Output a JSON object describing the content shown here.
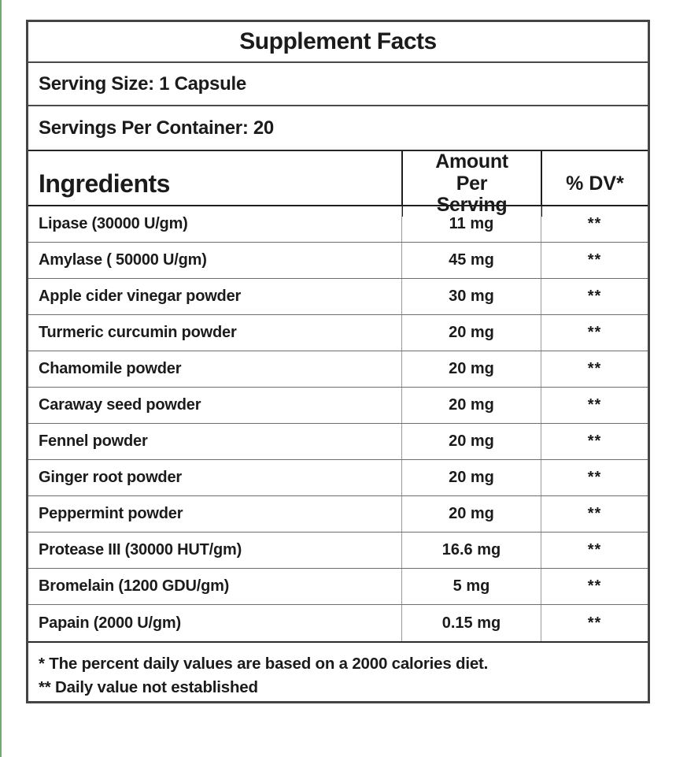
{
  "colors": {
    "accent_green": "#74a877",
    "border_dark": "#1e1e1e",
    "border_gray": "#6e6e6e",
    "text": "#1b1b1b"
  },
  "label": {
    "title": "Supplement Facts",
    "serving_size": "Serving Size: 1 Capsule",
    "servings_per_container": "Servings Per Container: 20",
    "header": {
      "ingredients": "Ingredients",
      "amount_per_serving": "Amount Per Serving",
      "percent_dv": "% DV*"
    },
    "rows": [
      {
        "name": "Lipase (30000 U/gm)",
        "amount": "11 mg",
        "dv": "**"
      },
      {
        "name": "Amylase ( 50000 U/gm)",
        "amount": "45 mg",
        "dv": "**"
      },
      {
        "name": "Apple cider vinegar powder",
        "amount": "30 mg",
        "dv": "**"
      },
      {
        "name": "Turmeric curcumin powder",
        "amount": "20 mg",
        "dv": "**"
      },
      {
        "name": "Chamomile powder",
        "amount": "20 mg",
        "dv": "**"
      },
      {
        "name": "Caraway seed powder",
        "amount": "20 mg",
        "dv": "**"
      },
      {
        "name": "Fennel powder",
        "amount": "20 mg",
        "dv": "**"
      },
      {
        "name": "Ginger root powder",
        "amount": "20 mg",
        "dv": "**"
      },
      {
        "name": "Peppermint powder",
        "amount": "20 mg",
        "dv": "**"
      },
      {
        "name": "Protease III (30000 HUT/gm)",
        "amount": "16.6 mg",
        "dv": "**"
      },
      {
        "name": "Bromelain (1200 GDU/gm)",
        "amount": "5 mg",
        "dv": "**"
      },
      {
        "name": "Papain (2000 U/gm)",
        "amount": "0.15 mg",
        "dv": "**"
      }
    ],
    "footnotes": {
      "line1": "* The percent daily values are based on a 2000 calories diet.",
      "line2": "** Daily value not established"
    }
  }
}
